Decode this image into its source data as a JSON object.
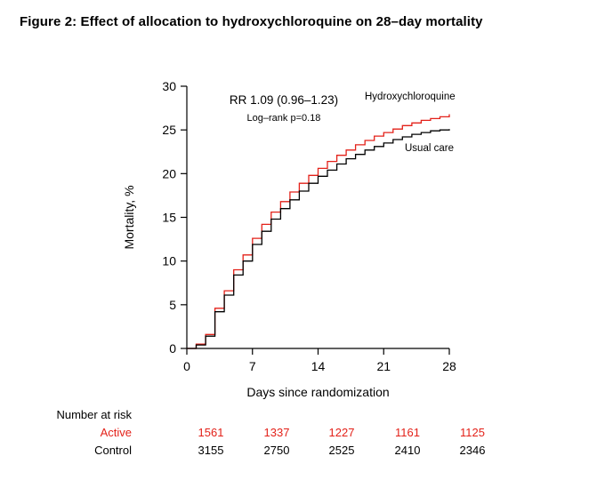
{
  "title": "Figure 2: Effect of allocation to hydroxychloroquine on 28–day mortality",
  "chart_data": {
    "type": "line",
    "subtype": "step",
    "title": "",
    "xlabel": "Days since randomization",
    "ylabel": "Mortality, %",
    "xlim": [
      0,
      28
    ],
    "ylim": [
      0,
      30
    ],
    "xticks": [
      0,
      7,
      14,
      21,
      28
    ],
    "yticks": [
      0,
      5,
      10,
      15,
      20,
      25,
      30
    ],
    "grid": false,
    "annotations": [
      "RR 1.09 (0.96–1.23)",
      "Log–rank p=0.18"
    ],
    "x": [
      0,
      1,
      2,
      3,
      4,
      5,
      6,
      7,
      8,
      9,
      10,
      11,
      12,
      13,
      14,
      15,
      16,
      17,
      18,
      19,
      20,
      21,
      22,
      23,
      24,
      25,
      26,
      27,
      28
    ],
    "series": [
      {
        "name": "Hydroxychloroquine",
        "color": "#e32119",
        "values": [
          0,
          0.5,
          1.6,
          4.6,
          6.6,
          9.0,
          10.7,
          12.6,
          14.2,
          15.6,
          16.8,
          17.9,
          18.9,
          19.8,
          20.6,
          21.4,
          22.1,
          22.7,
          23.3,
          23.8,
          24.3,
          24.7,
          25.1,
          25.5,
          25.8,
          26.1,
          26.3,
          26.5,
          26.8
        ]
      },
      {
        "name": "Usual care",
        "color": "#000000",
        "values": [
          0,
          0.4,
          1.4,
          4.2,
          6.1,
          8.4,
          10.0,
          11.9,
          13.4,
          14.8,
          16.0,
          17.0,
          18.0,
          18.9,
          19.7,
          20.4,
          21.1,
          21.7,
          22.2,
          22.7,
          23.1,
          23.5,
          23.9,
          24.2,
          24.5,
          24.7,
          24.9,
          25.0,
          25.1
        ]
      }
    ],
    "label_positions": [
      [
        410,
        52
      ],
      [
        455,
        110
      ]
    ],
    "legend_position": "inline-labels"
  },
  "risk_table": {
    "header": "Number at risk",
    "rows": [
      {
        "label": "Active",
        "color": "#e32119",
        "values": [
          "1561",
          "1337",
          "1227",
          "1161",
          "1125"
        ]
      },
      {
        "label": "Control",
        "color": "#000000",
        "values": [
          "3155",
          "2750",
          "2525",
          "2410",
          "2346"
        ]
      }
    ]
  }
}
